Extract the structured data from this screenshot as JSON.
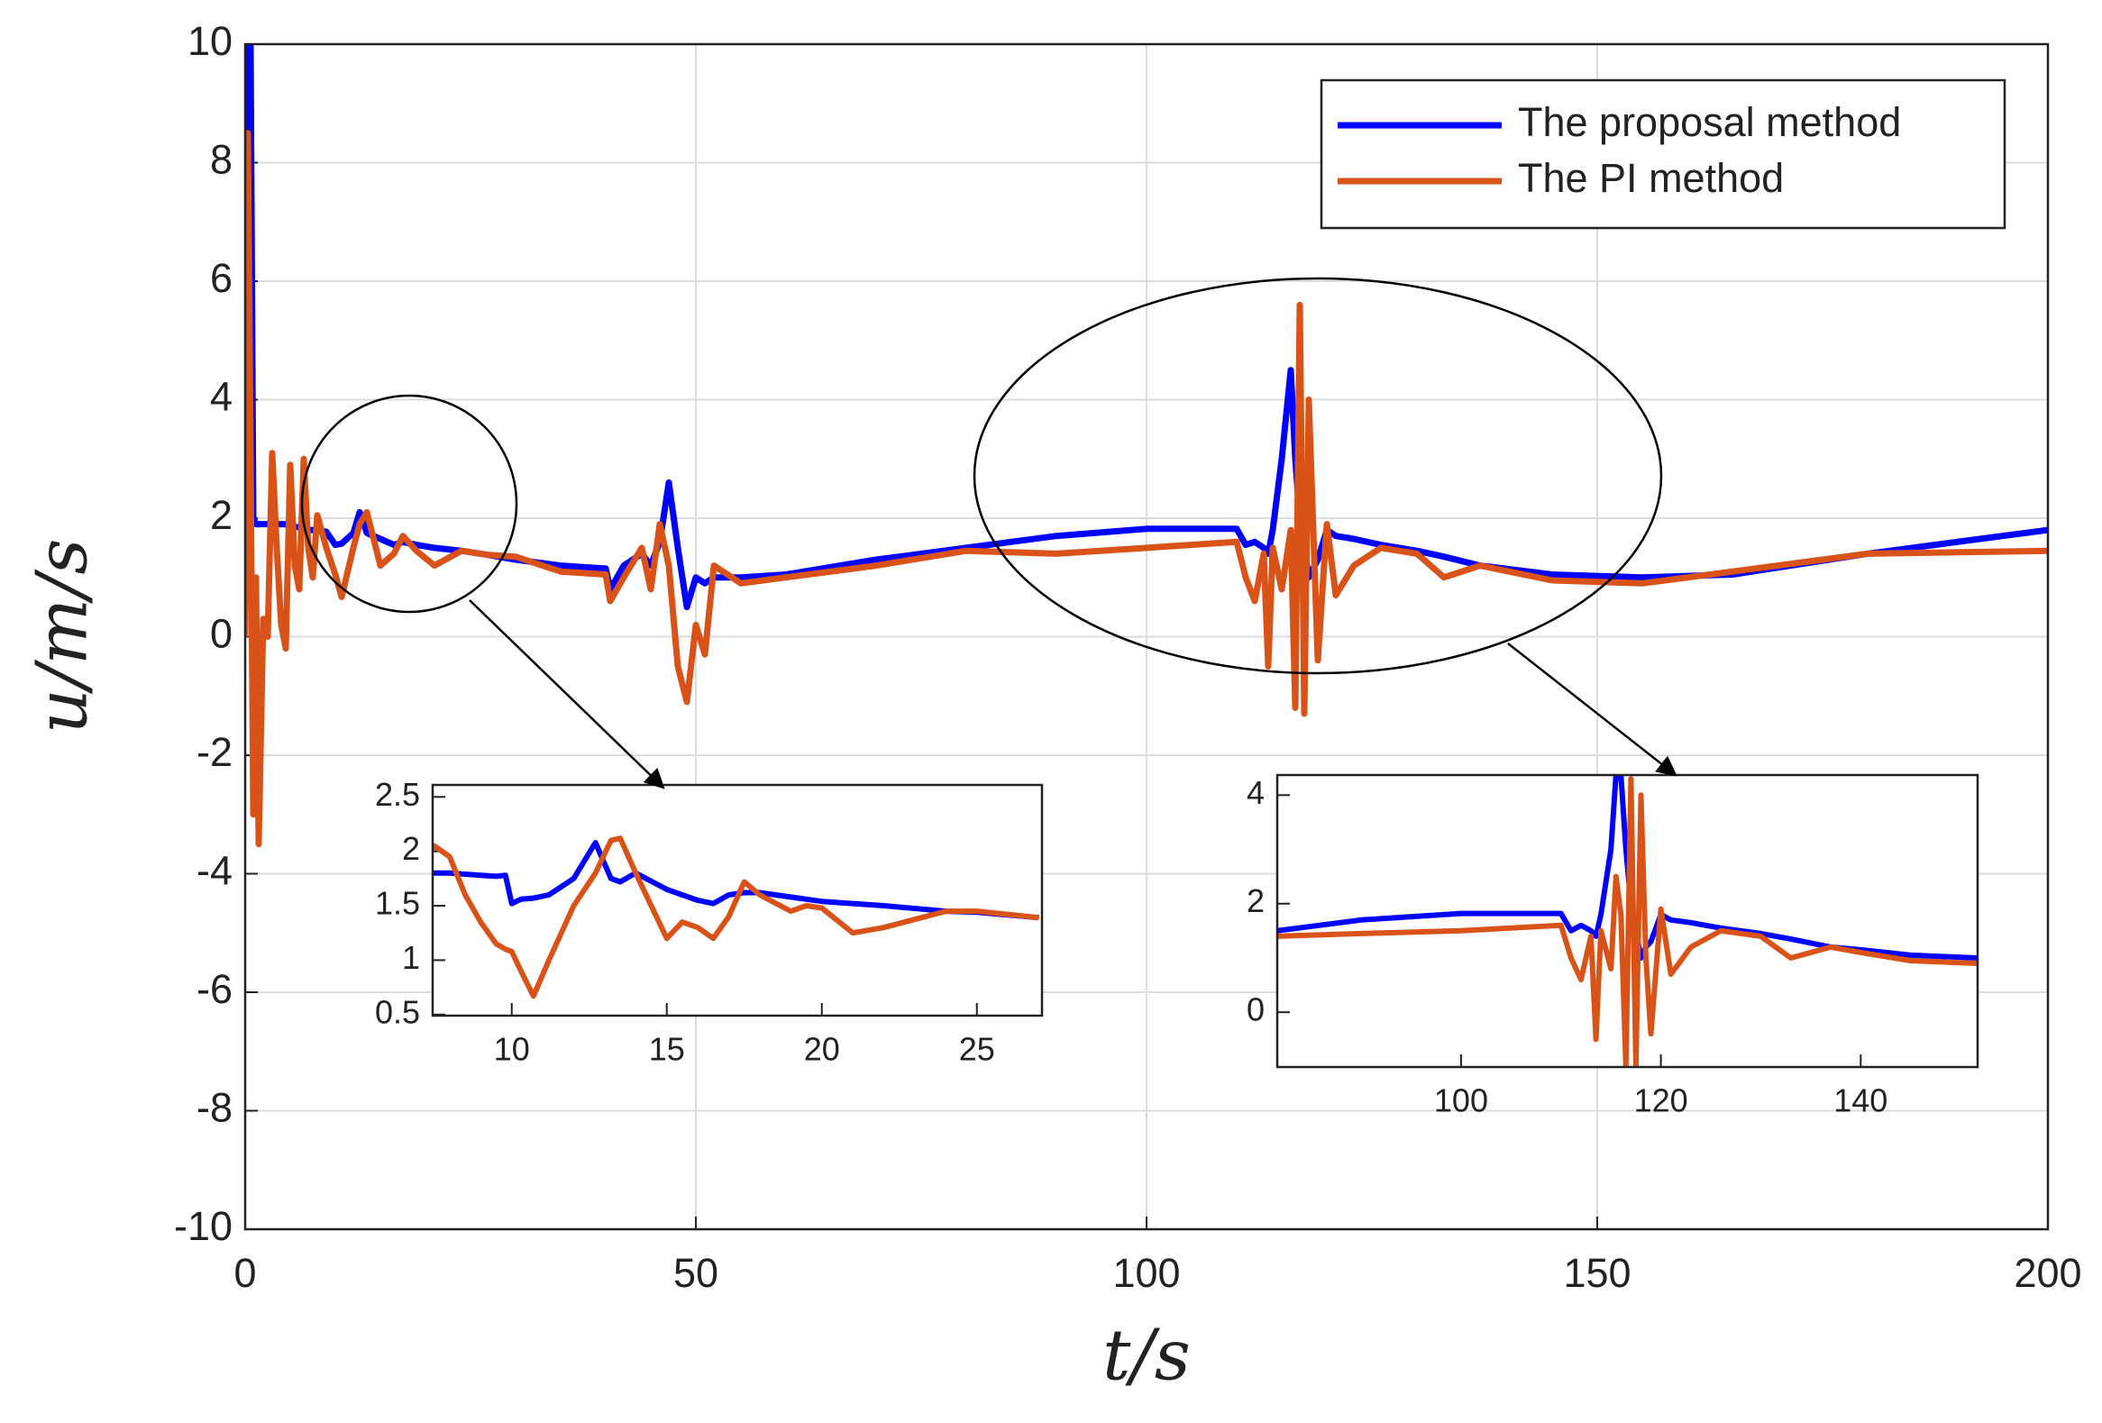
{
  "chart_data": [
    {
      "type": "line",
      "xlabel": "t/s",
      "ylabel": "u/m/s",
      "xlim": [
        0,
        200
      ],
      "ylim": [
        -10,
        10
      ],
      "xticks": [
        0,
        50,
        100,
        150,
        200
      ],
      "yticks": [
        -10,
        -8,
        -6,
        -4,
        -2,
        0,
        2,
        4,
        6,
        8,
        10
      ],
      "grid": true,
      "legend": "upper right",
      "x": [
        0,
        0.3,
        0.6,
        0.9,
        1.2,
        1.5,
        2,
        2.5,
        3,
        3.5,
        4,
        4.5,
        5,
        5.5,
        6,
        6.5,
        7,
        7.5,
        8,
        9,
        10,
        10.7,
        12,
        12.7,
        13.5,
        15,
        16.5,
        17.5,
        19,
        21,
        24,
        27,
        30,
        35,
        40,
        40.5,
        42,
        44,
        45,
        46,
        47,
        48,
        49,
        50,
        51,
        52,
        55,
        60,
        70,
        80,
        90,
        100,
        110,
        111,
        112,
        113,
        113.5,
        114,
        115,
        116,
        116.5,
        117,
        117.5,
        118,
        119,
        120,
        121,
        123,
        126,
        130,
        133,
        137,
        145,
        155,
        165,
        180,
        200
      ],
      "series": [
        {
          "name": "The proposal method",
          "color": "#0000ff",
          "values": [
            7,
            10,
            10,
            2,
            1.9,
            1.9,
            1.9,
            1.9,
            1.9,
            1.9,
            1.9,
            1.9,
            1.85,
            1.85,
            1.85,
            1.85,
            1.8,
            1.8,
            1.8,
            1.77,
            1.55,
            1.57,
            1.75,
            2.1,
            1.75,
            1.65,
            1.55,
            1.6,
            1.55,
            1.5,
            1.45,
            1.38,
            1.3,
            1.2,
            1.15,
            0.8,
            1.2,
            1.4,
            1.2,
            1.6,
            2.6,
            1.5,
            0.5,
            1.0,
            0.9,
            1.0,
            1.0,
            1.05,
            1.3,
            1.5,
            1.7,
            1.82,
            1.82,
            1.55,
            1.6,
            1.5,
            1.4,
            1.8,
            3.0,
            4.5,
            3.0,
            2.0,
            1.5,
            1.0,
            1.3,
            1.8,
            1.7,
            1.65,
            1.55,
            1.45,
            1.35,
            1.2,
            1.05,
            1.0,
            1.05,
            1.4,
            1.8
          ]
        },
        {
          "name": "The PI method",
          "color": "#d95319",
          "values": [
            0,
            8.5,
            3,
            -3,
            1,
            -3.5,
            0.3,
            0,
            3.1,
            1.5,
            0.2,
            -0.2,
            2.9,
            1.2,
            0.8,
            3,
            1.5,
            1.0,
            2.05,
            1.5,
            1.05,
            0.67,
            1.5,
            1.9,
            2.1,
            1.2,
            1.4,
            1.7,
            1.45,
            1.2,
            1.45,
            1.38,
            1.35,
            1.1,
            1.05,
            0.6,
            1.0,
            1.5,
            0.8,
            1.9,
            1.2,
            -0.5,
            -1.1,
            0.2,
            -0.3,
            1.2,
            0.9,
            1.0,
            1.2,
            1.45,
            1.4,
            1.5,
            1.6,
            1.0,
            0.6,
            1.4,
            -0.5,
            1.5,
            0.8,
            1.8,
            -1.2,
            5.6,
            -1.3,
            4.0,
            -0.4,
            1.9,
            0.7,
            1.2,
            1.5,
            1.4,
            1.0,
            1.2,
            0.95,
            0.9,
            1.1,
            1.4,
            1.45
          ]
        }
      ]
    },
    {
      "type": "line",
      "xlim": [
        7.45,
        27.1
      ],
      "ylim": [
        0.49,
        2.61
      ],
      "xticks": [
        10,
        15,
        20,
        25
      ],
      "yticks": [
        0.5,
        1,
        1.5,
        2,
        2.5
      ],
      "x": [
        7,
        7.5,
        8,
        8.5,
        9,
        9.5,
        9.8,
        10,
        10.3,
        10.7,
        11.2,
        12,
        12.7,
        13.2,
        13.5,
        14,
        15,
        15.5,
        16,
        16.5,
        17,
        17.5,
        18,
        19,
        19.5,
        20,
        21,
        22,
        24,
        25,
        27
      ],
      "series": [
        {
          "color": "#0000ff",
          "values": [
            1.8,
            1.8,
            1.8,
            1.79,
            1.78,
            1.77,
            1.78,
            1.52,
            1.56,
            1.57,
            1.6,
            1.75,
            2.08,
            1.75,
            1.72,
            1.8,
            1.65,
            1.6,
            1.55,
            1.52,
            1.6,
            1.62,
            1.62,
            1.58,
            1.56,
            1.54,
            1.52,
            1.5,
            1.45,
            1.44,
            1.39
          ]
        },
        {
          "color": "#d95319",
          "values": [
            1.8,
            2.05,
            1.95,
            1.6,
            1.35,
            1.15,
            1.1,
            1.08,
            0.9,
            0.67,
            1.0,
            1.5,
            1.8,
            2.1,
            2.12,
            1.8,
            1.2,
            1.35,
            1.3,
            1.2,
            1.4,
            1.72,
            1.6,
            1.45,
            1.5,
            1.48,
            1.25,
            1.3,
            1.45,
            1.45,
            1.39
          ]
        }
      ]
    },
    {
      "type": "line",
      "xlim": [
        81.6,
        151.7
      ],
      "ylim": [
        -1.01,
        4.37
      ],
      "xticks": [
        100,
        120,
        140
      ],
      "yticks": [
        0,
        2,
        4
      ],
      "x": [
        81.6,
        90,
        100,
        110,
        111,
        112,
        113,
        113.5,
        114,
        115,
        115.5,
        116,
        116.5,
        117,
        117.5,
        118,
        118.5,
        119,
        120,
        121,
        123,
        126,
        130,
        133,
        137,
        140,
        145,
        151.7
      ],
      "series": [
        {
          "color": "#0000ff",
          "values": [
            1.5,
            1.7,
            1.82,
            1.82,
            1.5,
            1.6,
            1.5,
            1.4,
            1.8,
            3.0,
            4.37,
            4.37,
            3.0,
            2.0,
            1.5,
            1.0,
            1.2,
            1.3,
            1.8,
            1.7,
            1.65,
            1.55,
            1.45,
            1.35,
            1.2,
            1.15,
            1.05,
            1.0
          ]
        },
        {
          "color": "#d95319",
          "values": [
            1.4,
            1.45,
            1.5,
            1.6,
            1.0,
            0.6,
            1.4,
            -0.5,
            1.5,
            0.8,
            2.5,
            1.8,
            -1.0,
            4.3,
            -1.0,
            4.0,
            1.0,
            -0.4,
            1.9,
            0.7,
            1.2,
            1.5,
            1.4,
            1.0,
            1.2,
            1.1,
            0.95,
            0.9
          ]
        }
      ]
    }
  ]
}
